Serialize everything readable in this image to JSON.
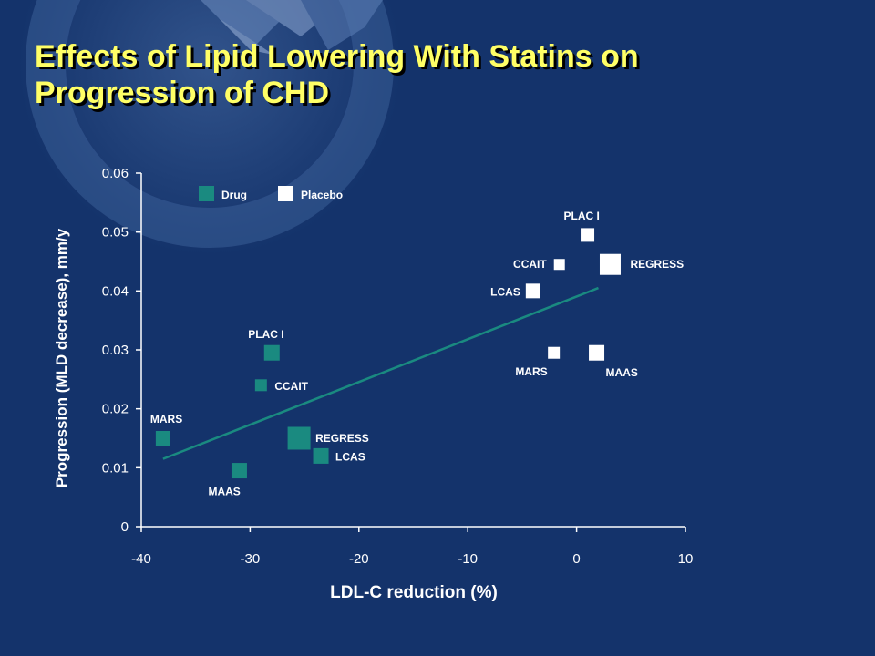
{
  "slide": {
    "title_line1": "Effects of Lipid Lowering With Statins on",
    "title_line2": "Progression of CHD"
  },
  "colors": {
    "background": "#14336b",
    "title": "#ffff66",
    "drug": "#1a8a80",
    "placebo": "#ffffff",
    "trendline": "#1a8a80",
    "axis": "#ffffff"
  },
  "chart_data": {
    "type": "scatter",
    "xlabel": "LDL-C reduction (%)",
    "ylabel": "Progression (MLD decrease),  mm/y",
    "xlim": [
      -40,
      10
    ],
    "ylim": [
      0,
      0.06
    ],
    "xticks": [
      "-40",
      "-30",
      "-20",
      "-10",
      "0",
      "10"
    ],
    "yticks": [
      "0",
      "0.01",
      "0.02",
      "0.03",
      "0.04",
      "0.05",
      "0.06"
    ],
    "grid": false,
    "legend_position": "top-left",
    "series": [
      {
        "name": "Drug",
        "marker": "square",
        "points": [
          {
            "label": "MARS",
            "x": -38,
            "y": 0.015
          },
          {
            "label": "MAAS",
            "x": -31,
            "y": 0.0095
          },
          {
            "label": "PLAC I",
            "x": -28,
            "y": 0.0295
          },
          {
            "label": "CCAIT",
            "x": -29,
            "y": 0.024
          },
          {
            "label": "REGRESS",
            "x": -25,
            "y": 0.015
          },
          {
            "label": "LCAS",
            "x": -24,
            "y": 0.012
          }
        ]
      },
      {
        "name": "Placebo",
        "marker": "square",
        "points": [
          {
            "label": "PLAC I",
            "x": 1,
            "y": 0.0495
          },
          {
            "label": "CCAIT",
            "x": -2,
            "y": 0.0445
          },
          {
            "label": "REGRESS",
            "x": 2,
            "y": 0.0445
          },
          {
            "label": "LCAS",
            "x": -4,
            "y": 0.04
          },
          {
            "label": "MARS",
            "x": -1,
            "y": 0.0295
          },
          {
            "label": "MAAS",
            "x": 1,
            "y": 0.0295
          }
        ]
      }
    ],
    "trendline": {
      "x": [
        -38,
        2
      ],
      "y": [
        0.0115,
        0.0405
      ]
    }
  }
}
